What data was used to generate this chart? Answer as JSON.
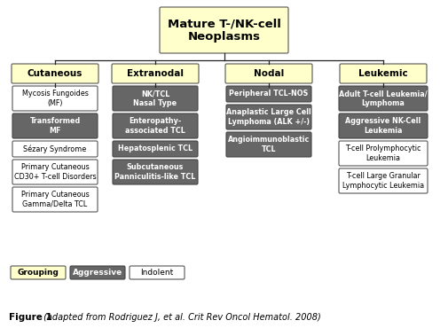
{
  "title": "Mature T-/NK-cell\nNeoplasms",
  "categories": [
    "Cutaneous",
    "Extranodal",
    "Nodal",
    "Leukemic"
  ],
  "cat_bg": "#ffffcc",
  "agg_bg": "#666666",
  "agg_fg": "#ffffff",
  "ind_bg": "#ffffff",
  "ind_fg": "#000000",
  "line_color": "#222222",
  "nodes": {
    "Cutaneous": [
      {
        "text": "Mycosis Fungoides\n(MF)",
        "style": "indolent"
      },
      {
        "text": "Transformed\nMF",
        "style": "aggressive"
      },
      {
        "text": "Sézary Syndrome",
        "style": "indolent"
      },
      {
        "text": "Primary Cutaneous\nCD30+ T-cell Disorders",
        "style": "indolent"
      },
      {
        "text": "Primary Cutaneous\nGamma/Delta TCL",
        "style": "indolent"
      }
    ],
    "Extranodal": [
      {
        "text": "NK/TCL\nNasal Type",
        "style": "aggressive"
      },
      {
        "text": "Enteropathy-\nassociated TCL",
        "style": "aggressive"
      },
      {
        "text": "Hepatosplenic TCL",
        "style": "aggressive"
      },
      {
        "text": "Subcutaneous\nPanniculitis-like TCL",
        "style": "aggressive"
      }
    ],
    "Nodal": [
      {
        "text": "Peripheral TCL-NOS",
        "style": "aggressive"
      },
      {
        "text": "Anaplastic Large Cell\nLymphoma (ALK +/-)",
        "style": "aggressive"
      },
      {
        "text": "Angioimmunoblastic\nTCL",
        "style": "aggressive"
      }
    ],
    "Leukemic": [
      {
        "text": "Adult T-cell Leukemia/\nLymphoma",
        "style": "aggressive"
      },
      {
        "text": "Aggressive NK-Cell\nLeukemia",
        "style": "aggressive"
      },
      {
        "text": "T-cell Prolymphocytic\nLeukemia",
        "style": "indolent"
      },
      {
        "text": "T-cell Large Granular\nLymphocytic Leukemia",
        "style": "indolent"
      }
    ]
  },
  "legend": [
    {
      "text": "Grouping",
      "style": "cat"
    },
    {
      "text": "Aggressive",
      "style": "aggressive"
    },
    {
      "text": "Indolent",
      "style": "indolent"
    }
  ],
  "caption_bold": "Figure 1",
  "caption_italic": " (adapted from Rodriguez J, et al. Crit Rev Oncol Hematol. 2008)",
  "bg_color": "#ffffff"
}
